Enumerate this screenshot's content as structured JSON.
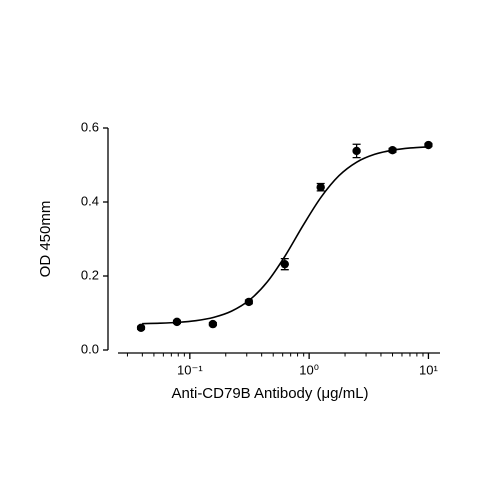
{
  "chart_data": {
    "type": "scatter",
    "xlabel": "Anti-CD79B Antibody (μg/mL)",
    "ylabel": "OD 450mm",
    "xscale": "log",
    "xlim": [
      0.025,
      12.5
    ],
    "xticks": [
      {
        "value": 0.1,
        "label": "10⁻¹"
      },
      {
        "value": 1,
        "label": "10⁰"
      },
      {
        "value": 10,
        "label": "10¹"
      }
    ],
    "xminorticks": [
      0.03,
      0.04,
      0.05,
      0.06,
      0.07,
      0.08,
      0.09,
      0.2,
      0.3,
      0.4,
      0.5,
      0.6,
      0.7,
      0.8,
      0.9,
      2,
      3,
      4,
      5,
      6,
      7,
      8,
      9
    ],
    "ylim": [
      0,
      0.6
    ],
    "yticks": [
      {
        "value": 0,
        "label": "0.0"
      },
      0.2,
      0.4,
      0.6
    ],
    "series": [
      {
        "color": "#000000",
        "x": [
          0.039,
          0.078,
          0.156,
          0.3125,
          0.625,
          1.25,
          2.5,
          5,
          10
        ],
        "values": [
          0.06,
          0.076,
          0.07,
          0.13,
          0.232,
          0.44,
          0.538,
          0.54,
          0.554
        ],
        "errors": [
          0.004,
          0.004,
          0.004,
          0.005,
          0.015,
          0.01,
          0.018,
          0.005,
          0.004
        ]
      },
      {
        "type": "line",
        "color": "#000000",
        "x": [
          0.0398,
          0.0562,
          0.0794,
          0.1122,
          0.1585,
          0.2239,
          0.3162,
          0.4467,
          0.631,
          0.891,
          1.259,
          1.778,
          2.512,
          3.548,
          5.012,
          7.079,
          10
        ],
        "values": [
          0.0712,
          0.0724,
          0.0747,
          0.0793,
          0.0882,
          0.105,
          0.135,
          0.1845,
          0.255,
          0.337,
          0.413,
          0.471,
          0.508,
          0.529,
          0.54,
          0.546,
          0.549
        ]
      }
    ]
  }
}
